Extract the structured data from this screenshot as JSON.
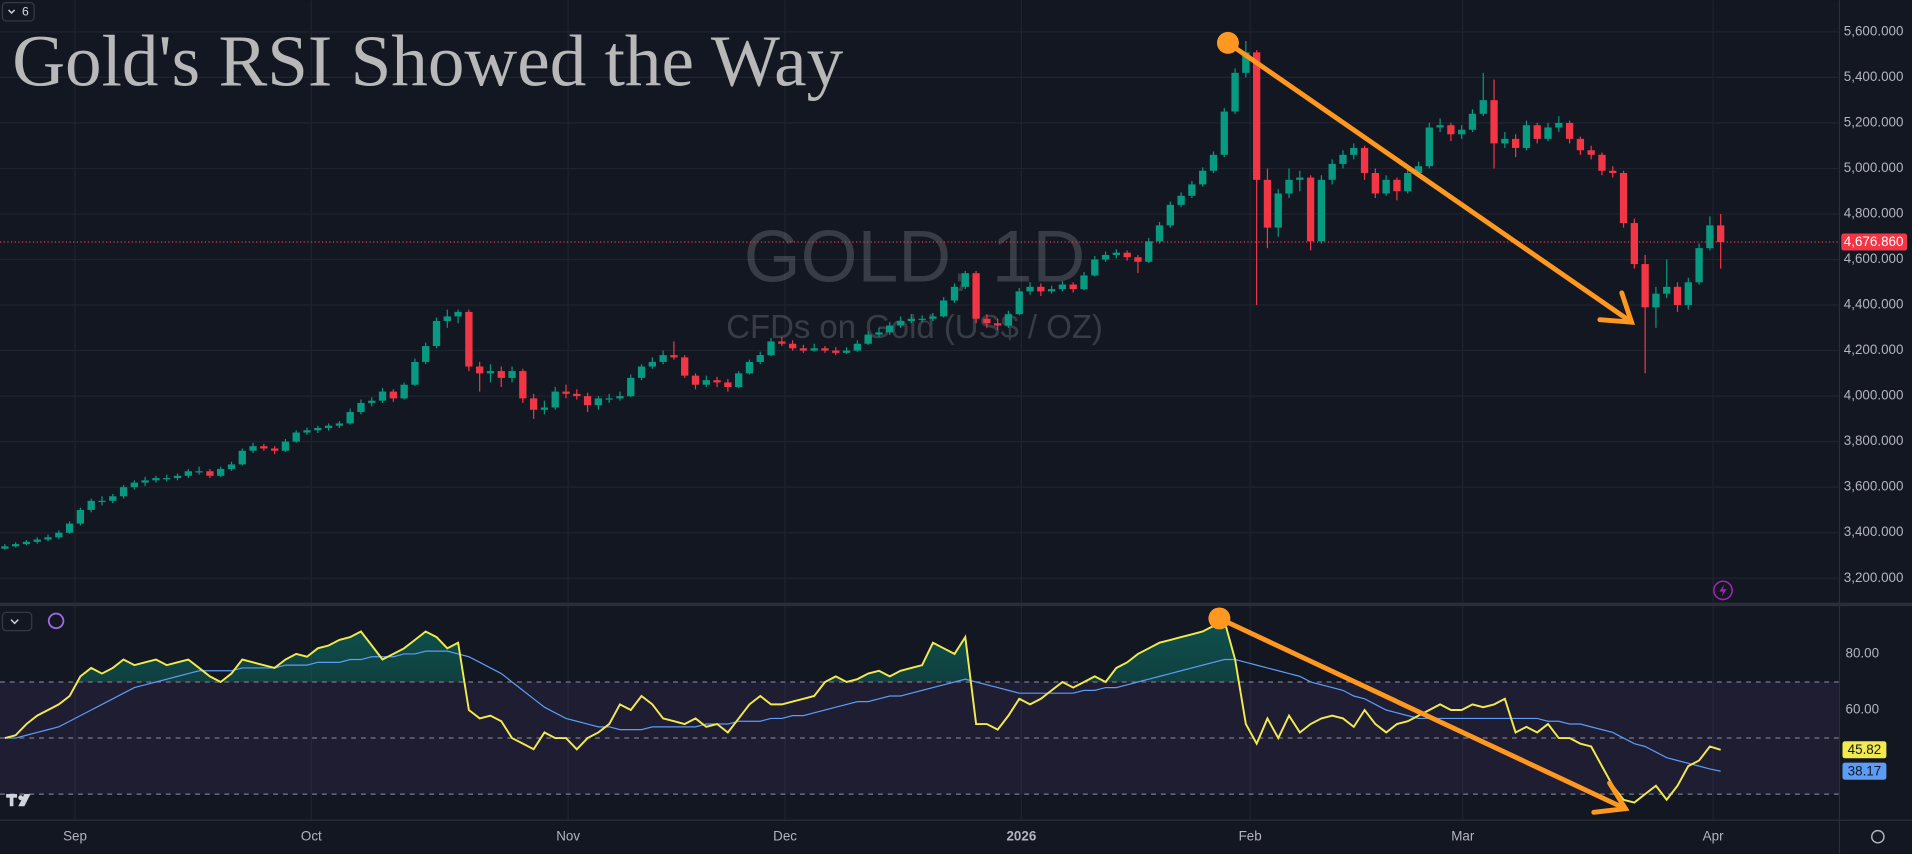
{
  "toolbar": {
    "badge": "6"
  },
  "chart_data": {
    "type": "candlestick",
    "title": "Gold's RSI Showed the Way",
    "watermark": "GOLD, 1D",
    "subtitle": "CFDs on Gold (US$ / OZ)",
    "up_color": "#089981",
    "down_color": "#f23645",
    "xlim": [
      -0.45,
      169.95
    ],
    "xticks": [
      {
        "value": 6.5,
        "label": "Sep"
      },
      {
        "value": 28.4,
        "label": "Oct"
      },
      {
        "value": 52.2,
        "label": "Nov"
      },
      {
        "value": 72.3,
        "label": "Dec"
      },
      {
        "value": 94.2,
        "label": "2026"
      },
      {
        "value": 115.4,
        "label": "Feb"
      },
      {
        "value": 135.1,
        "label": "Mar"
      },
      {
        "value": 158.3,
        "label": "Apr"
      }
    ],
    "ylim": [
      3093,
      5739
    ],
    "yticks": [
      {
        "value": 3200,
        "label": "3,200.000"
      },
      {
        "value": 3400,
        "label": "3,400.000"
      },
      {
        "value": 3600,
        "label": "3,600.000"
      },
      {
        "value": 3800,
        "label": "3,800.000"
      },
      {
        "value": 4000,
        "label": "4,000.000"
      },
      {
        "value": 4200,
        "label": "4,200.000"
      },
      {
        "value": 4400,
        "label": "4,400.000"
      },
      {
        "value": 4600,
        "label": "4,600.000"
      },
      {
        "value": 4800,
        "label": "4,800.000"
      },
      {
        "value": 5000,
        "label": "5,000.000"
      },
      {
        "value": 5200,
        "label": "5,200.000"
      },
      {
        "value": 5400,
        "label": "5,400.000"
      },
      {
        "value": 5600,
        "label": "5,600.000"
      }
    ],
    "last_price": {
      "value": 4676.86,
      "label": "4,676.860",
      "color": "#f23645"
    },
    "ohlc": [
      [
        3330,
        3350,
        3325,
        3340
      ],
      [
        3340,
        3358,
        3335,
        3350
      ],
      [
        3350,
        3368,
        3345,
        3360
      ],
      [
        3360,
        3380,
        3352,
        3370
      ],
      [
        3370,
        3392,
        3362,
        3380
      ],
      [
        3380,
        3410,
        3372,
        3400
      ],
      [
        3400,
        3450,
        3395,
        3440
      ],
      [
        3440,
        3510,
        3432,
        3500
      ],
      [
        3500,
        3550,
        3490,
        3540
      ],
      [
        3540,
        3560,
        3520,
        3540
      ],
      [
        3540,
        3570,
        3530,
        3560
      ],
      [
        3560,
        3610,
        3550,
        3600
      ],
      [
        3600,
        3630,
        3590,
        3620
      ],
      [
        3620,
        3645,
        3605,
        3630
      ],
      [
        3630,
        3650,
        3620,
        3640
      ],
      [
        3640,
        3655,
        3625,
        3640
      ],
      [
        3640,
        3660,
        3630,
        3650
      ],
      [
        3650,
        3680,
        3640,
        3670
      ],
      [
        3670,
        3690,
        3655,
        3670
      ],
      [
        3670,
        3680,
        3640,
        3650
      ],
      [
        3650,
        3690,
        3645,
        3680
      ],
      [
        3680,
        3712,
        3672,
        3700
      ],
      [
        3700,
        3770,
        3695,
        3760
      ],
      [
        3760,
        3795,
        3750,
        3780
      ],
      [
        3780,
        3790,
        3760,
        3770
      ],
      [
        3770,
        3780,
        3745,
        3760
      ],
      [
        3760,
        3812,
        3755,
        3800
      ],
      [
        3800,
        3850,
        3795,
        3840
      ],
      [
        3840,
        3862,
        3830,
        3850
      ],
      [
        3850,
        3870,
        3838,
        3860
      ],
      [
        3860,
        3880,
        3848,
        3870
      ],
      [
        3870,
        3890,
        3860,
        3880
      ],
      [
        3880,
        3945,
        3875,
        3930
      ],
      [
        3930,
        3985,
        3920,
        3970
      ],
      [
        3970,
        3995,
        3955,
        3980
      ],
      [
        3980,
        4035,
        3970,
        4020
      ],
      [
        4020,
        4030,
        3975,
        3990
      ],
      [
        3990,
        4060,
        3985,
        4050
      ],
      [
        4050,
        4165,
        4045,
        4150
      ],
      [
        4150,
        4235,
        4140,
        4220
      ],
      [
        4220,
        4345,
        4210,
        4330
      ],
      [
        4330,
        4380,
        4300,
        4350
      ],
      [
        4350,
        4380,
        4320,
        4370
      ],
      [
        4370,
        4380,
        4110,
        4130
      ],
      [
        4130,
        4150,
        4020,
        4100
      ],
      [
        4100,
        4140,
        4060,
        4110
      ],
      [
        4110,
        4130,
        4040,
        4080
      ],
      [
        4080,
        4130,
        4060,
        4110
      ],
      [
        4110,
        4120,
        3970,
        3990
      ],
      [
        3990,
        4010,
        3900,
        3940
      ],
      [
        3940,
        3980,
        3920,
        3950
      ],
      [
        3950,
        4040,
        3940,
        4020
      ],
      [
        4020,
        4050,
        3990,
        4010
      ],
      [
        4010,
        4030,
        3985,
        4000
      ],
      [
        4000,
        4015,
        3930,
        3960
      ],
      [
        3960,
        4000,
        3940,
        3990
      ],
      [
        3990,
        4010,
        3970,
        3990
      ],
      [
        3990,
        4020,
        3980,
        4000
      ],
      [
        4000,
        4095,
        3995,
        4080
      ],
      [
        4080,
        4140,
        4070,
        4130
      ],
      [
        4130,
        4170,
        4120,
        4150
      ],
      [
        4150,
        4200,
        4140,
        4180
      ],
      [
        4180,
        4240,
        4160,
        4170
      ],
      [
        4170,
        4180,
        4080,
        4090
      ],
      [
        4090,
        4100,
        4030,
        4050
      ],
      [
        4050,
        4090,
        4040,
        4070
      ],
      [
        4070,
        4085,
        4040,
        4060
      ],
      [
        4060,
        4075,
        4020,
        4040
      ],
      [
        4040,
        4110,
        4035,
        4100
      ],
      [
        4100,
        4160,
        4095,
        4150
      ],
      [
        4150,
        4195,
        4140,
        4180
      ],
      [
        4180,
        4255,
        4175,
        4240
      ],
      [
        4240,
        4260,
        4220,
        4230
      ],
      [
        4230,
        4245,
        4200,
        4210
      ],
      [
        4210,
        4225,
        4190,
        4200
      ],
      [
        4200,
        4230,
        4195,
        4210
      ],
      [
        4210,
        4220,
        4190,
        4200
      ],
      [
        4200,
        4215,
        4180,
        4190
      ],
      [
        4190,
        4215,
        4185,
        4200
      ],
      [
        4200,
        4245,
        4195,
        4230
      ],
      [
        4230,
        4285,
        4225,
        4270
      ],
      [
        4270,
        4300,
        4260,
        4280
      ],
      [
        4280,
        4325,
        4270,
        4310
      ],
      [
        4310,
        4350,
        4300,
        4330
      ],
      [
        4330,
        4360,
        4320,
        4340
      ],
      [
        4340,
        4355,
        4325,
        4340
      ],
      [
        4340,
        4365,
        4330,
        4350
      ],
      [
        4350,
        4435,
        4345,
        4420
      ],
      [
        4420,
        4495,
        4410,
        4480
      ],
      [
        4480,
        4550,
        4470,
        4540
      ],
      [
        4540,
        4550,
        4320,
        4340
      ],
      [
        4340,
        4360,
        4300,
        4320
      ],
      [
        4320,
        4340,
        4290,
        4310
      ],
      [
        4310,
        4375,
        4300,
        4360
      ],
      [
        4360,
        4475,
        4355,
        4460
      ],
      [
        4460,
        4500,
        4445,
        4480
      ],
      [
        4480,
        4495,
        4440,
        4460
      ],
      [
        4460,
        4485,
        4450,
        4470
      ],
      [
        4470,
        4505,
        4460,
        4490
      ],
      [
        4490,
        4500,
        4455,
        4470
      ],
      [
        4470,
        4545,
        4465,
        4530
      ],
      [
        4530,
        4615,
        4525,
        4600
      ],
      [
        4600,
        4635,
        4590,
        4620
      ],
      [
        4620,
        4645,
        4605,
        4630
      ],
      [
        4630,
        4640,
        4595,
        4610
      ],
      [
        4610,
        4620,
        4540,
        4590
      ],
      [
        4590,
        4695,
        4585,
        4680
      ],
      [
        4680,
        4765,
        4670,
        4750
      ],
      [
        4750,
        4855,
        4740,
        4840
      ],
      [
        4840,
        4895,
        4830,
        4880
      ],
      [
        4880,
        4945,
        4870,
        4930
      ],
      [
        4930,
        5005,
        4920,
        4990
      ],
      [
        4990,
        5075,
        4980,
        5060
      ],
      [
        5060,
        5265,
        5050,
        5250
      ],
      [
        5250,
        5440,
        5240,
        5420
      ],
      [
        5420,
        5560,
        5400,
        5510
      ],
      [
        5510,
        5520,
        4400,
        4950
      ],
      [
        4950,
        5000,
        4650,
        4740
      ],
      [
        4740,
        4910,
        4700,
        4890
      ],
      [
        4890,
        5000,
        4870,
        4950
      ],
      [
        4950,
        4990,
        4900,
        4960
      ],
      [
        4960,
        4970,
        4640,
        4680
      ],
      [
        4680,
        4970,
        4670,
        4950
      ],
      [
        4950,
        5040,
        4930,
        5020
      ],
      [
        5020,
        5080,
        5000,
        5060
      ],
      [
        5060,
        5110,
        5040,
        5090
      ],
      [
        5090,
        5100,
        4950,
        4980
      ],
      [
        4980,
        5000,
        4870,
        4890
      ],
      [
        4890,
        4970,
        4880,
        4950
      ],
      [
        4950,
        4960,
        4860,
        4900
      ],
      [
        4900,
        5000,
        4890,
        4980
      ],
      [
        4980,
        5030,
        4960,
        5010
      ],
      [
        5010,
        5200,
        5000,
        5180
      ],
      [
        5180,
        5220,
        5160,
        5190
      ],
      [
        5190,
        5200,
        5120,
        5150
      ],
      [
        5150,
        5190,
        5130,
        5170
      ],
      [
        5170,
        5260,
        5160,
        5240
      ],
      [
        5240,
        5420,
        5230,
        5300
      ],
      [
        5300,
        5390,
        5000,
        5110
      ],
      [
        5110,
        5160,
        5090,
        5130
      ],
      [
        5130,
        5150,
        5050,
        5090
      ],
      [
        5090,
        5210,
        5080,
        5190
      ],
      [
        5190,
        5200,
        5110,
        5130
      ],
      [
        5130,
        5200,
        5120,
        5180
      ],
      [
        5180,
        5230,
        5160,
        5200
      ],
      [
        5200,
        5210,
        5110,
        5130
      ],
      [
        5130,
        5140,
        5060,
        5080
      ],
      [
        5080,
        5100,
        5040,
        5060
      ],
      [
        5060,
        5070,
        4970,
        4990
      ],
      [
        4990,
        5010,
        4960,
        4980
      ],
      [
        4980,
        4990,
        4740,
        4760
      ],
      [
        4760,
        4780,
        4560,
        4580
      ],
      [
        4580,
        4620,
        4100,
        4390
      ],
      [
        4390,
        4480,
        4300,
        4450
      ],
      [
        4450,
        4600,
        4430,
        4480
      ],
      [
        4480,
        4500,
        4370,
        4400
      ],
      [
        4400,
        4520,
        4380,
        4500
      ],
      [
        4500,
        4670,
        4490,
        4650
      ],
      [
        4650,
        4790,
        4640,
        4750
      ],
      [
        4750,
        4800,
        4560,
        4676.86
      ]
    ],
    "rsi": {
      "color": "#f2e94e",
      "ma_color": "#5b9cf6",
      "y2lim": [
        20.9,
        97
      ],
      "y2ticks": [
        {
          "value": 80,
          "label": "80.00"
        },
        {
          "value": 60,
          "label": "60.00"
        }
      ],
      "levels": [
        70,
        50,
        30
      ],
      "values": [
        50,
        51,
        55,
        58,
        60,
        62,
        65,
        72,
        75,
        73,
        75,
        78,
        76,
        77,
        78,
        76,
        77,
        78,
        75,
        72,
        70,
        73,
        78,
        77,
        76,
        75,
        78,
        80,
        79,
        82,
        83,
        85,
        86,
        88,
        83,
        78,
        80,
        82,
        85,
        88,
        86,
        82,
        84,
        60,
        57,
        58,
        56,
        50,
        48,
        46,
        52,
        50,
        50,
        46,
        50,
        52,
        55,
        62,
        60,
        65,
        62,
        57,
        56,
        55,
        57,
        54,
        55,
        52,
        57,
        62,
        65,
        62,
        62,
        63,
        64,
        65,
        70,
        72,
        70,
        71,
        73,
        74,
        72,
        74,
        75,
        76,
        84,
        82,
        80,
        86,
        55,
        55,
        53,
        58,
        64,
        62,
        64,
        67,
        70,
        68,
        70,
        72,
        70,
        75,
        77,
        80,
        82,
        84,
        85,
        86,
        87,
        88,
        90,
        92,
        78,
        55,
        48,
        57,
        50,
        58,
        52,
        55,
        57,
        58,
        57,
        54,
        60,
        55,
        52,
        55,
        56,
        58,
        60,
        62,
        60,
        60,
        62,
        61,
        62,
        64,
        52,
        54,
        52,
        55,
        50,
        50,
        48,
        47,
        40,
        33,
        28,
        27,
        30,
        33,
        28,
        33,
        40,
        42,
        47,
        45.82
      ],
      "ma_values": [
        50,
        50,
        51,
        52,
        53,
        54,
        56,
        58,
        60,
        62,
        64,
        66,
        68,
        69,
        70,
        71,
        72,
        73,
        74,
        74,
        74,
        74,
        75,
        75,
        75,
        75,
        76,
        76,
        76,
        77,
        77,
        77,
        78,
        78,
        79,
        79,
        79,
        80,
        80,
        81,
        81,
        81,
        80,
        79,
        77,
        75,
        73,
        70,
        67,
        64,
        61,
        59,
        57,
        56,
        55,
        54,
        54,
        53,
        53,
        53,
        54,
        54,
        54,
        54,
        54,
        55,
        55,
        55,
        56,
        56,
        56,
        57,
        57,
        58,
        58,
        59,
        60,
        61,
        62,
        63,
        63,
        64,
        65,
        65,
        66,
        67,
        68,
        69,
        70,
        71,
        70,
        69,
        68,
        67,
        66,
        66,
        66,
        66,
        66,
        66,
        67,
        67,
        68,
        68,
        69,
        70,
        71,
        72,
        73,
        74,
        75,
        76,
        77,
        78,
        78,
        77,
        76,
        75,
        74,
        73,
        72,
        70,
        69,
        68,
        67,
        65,
        64,
        62,
        60,
        59,
        58,
        57,
        57,
        57,
        57,
        57,
        57,
        57,
        57,
        57,
        57,
        57,
        57,
        56,
        56,
        55,
        55,
        54,
        53,
        52,
        50,
        48,
        47,
        45,
        43,
        42,
        41,
        40,
        39,
        38.17
      ]
    }
  }
}
